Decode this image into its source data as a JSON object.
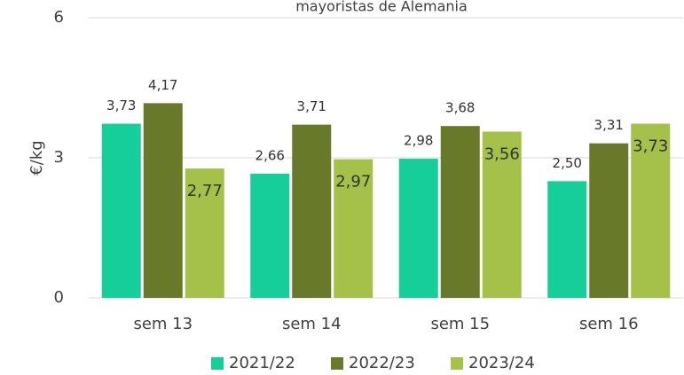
{
  "chart_data": {
    "type": "bar",
    "title": "mayoristas de Alemania",
    "y_label": "€/kg",
    "categories": [
      "sem 13",
      "sem 14",
      "sem 15",
      "sem 16"
    ],
    "series": [
      {
        "name": "2021/22",
        "color": "#16cf98",
        "values": [
          3.73,
          2.66,
          2.98,
          2.5
        ],
        "value_labels": [
          "3,73",
          "2,66",
          "2,98",
          "2,50"
        ]
      },
      {
        "name": "2022/23",
        "color": "#687a29",
        "values": [
          4.17,
          3.71,
          3.68,
          3.31
        ],
        "value_labels": [
          "4,17",
          "3,71",
          "3,68",
          "3,31"
        ]
      },
      {
        "name": "2023/24",
        "color": "#a5c14a",
        "values": [
          2.77,
          2.97,
          3.56,
          3.73
        ],
        "value_labels": [
          "2,77",
          "2,97",
          "3,56",
          "3,73"
        ]
      }
    ],
    "ylim": [
      0,
      6
    ],
    "yticks": [
      0,
      3,
      6
    ],
    "grid": true,
    "legend": "bottom"
  }
}
